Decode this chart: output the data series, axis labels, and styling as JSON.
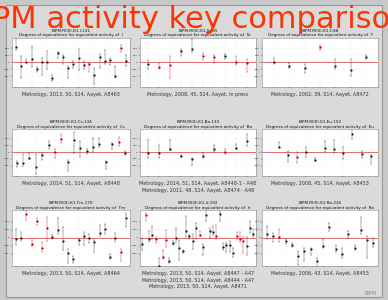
{
  "title": "BIPM activity key comparisons",
  "title_color": "#FF3300",
  "title_fontsize": 22,
  "page_bg": "#C8C8C8",
  "border_color": "#999999",
  "inner_bg": "#D0D0D0",
  "subplot_bg": "#FFFFFF",
  "subplot_border_color": "#888888",
  "data_color_main": "#222222",
  "data_color_highlight": "#CC0000",
  "ref_line_color": "#CC0000",
  "grid_color": "#BBCCDD",
  "num_charts": 9,
  "num_data_points": [
    22,
    10,
    7,
    18,
    10,
    12,
    22,
    34,
    18
  ],
  "caption_lines": [
    [
      "Metrology, 2013, 50, S14, Aayet, A8463"
    ],
    [
      "Metrology, 2008, 45, S14, Aayet, in press"
    ],
    [
      "Metrology, 2002, 39, S14, Aayet, A8472"
    ],
    [
      "Metrology, 2014, 51, S14, Aayet, A8448"
    ],
    [
      "Metrology, 2014, 51, S14, Aayet, A8448-1 - A48",
      "Metrology, 2011, 48, S14, Aayet, A8474 - A48"
    ],
    [
      "Metrology, 2008, 45, S14, Aayet, A8453"
    ],
    [
      "Metrology, 2013, 50, S14, Aayet, A8464"
    ],
    [
      "Metrology, 2013, 50, S14, Aayet, A8447 - A47",
      "Metrology, 2013, 50, S14, Aayet, A8444 - A47",
      "Metrology, 2013, 50, S14, Aayet, A8471"
    ],
    [
      "Metrology, 2006, 43, S14, Aayet, A8453"
    ]
  ],
  "chart_title_rows": [
    [
      "BIPM.RI(II)-K1.I-131",
      "Degrees of equivalence for equivalent activity of  I"
    ],
    [
      "BIPM.RI(II)-K1.Sr-85",
      "Degrees of equivalence for equivalent activity of  Sr"
    ],
    [
      "BIPM.RI(II)-K1.Y-88",
      "Degrees of equivalence for equivalent activity of  Y"
    ],
    [
      "BIPM.RI(II)-K1.Cs-134",
      "Degrees of equivalence for equivalent activity of  Cs"
    ],
    [
      "BIPM.RI(II)-K1.Ba-133",
      "Degrees of equivalence for equivalent activity of  Ba"
    ],
    [
      "BIPM.RI(II)-K1.Eu-152",
      "Degrees of equivalence for equivalent activity of  Eu"
    ],
    [
      "BIPM.RI(II)-K1.Tm-170",
      "Degrees of equivalence for equivalent activity of  Tm"
    ],
    [
      "BIPM.RI(II)-K1.Ir-192",
      "Degrees of equivalence for equivalent activity of  Ir"
    ],
    [
      "BIPM.RI(II)-K1.Ra-226",
      "Degrees of equivalence for equivalent activity of  Ra"
    ]
  ],
  "watermark": "BIPM",
  "caption_fontsize": 3.5,
  "subplot_title_fontsize": 3.0,
  "subplot_subtitle_fontsize": 2.5
}
